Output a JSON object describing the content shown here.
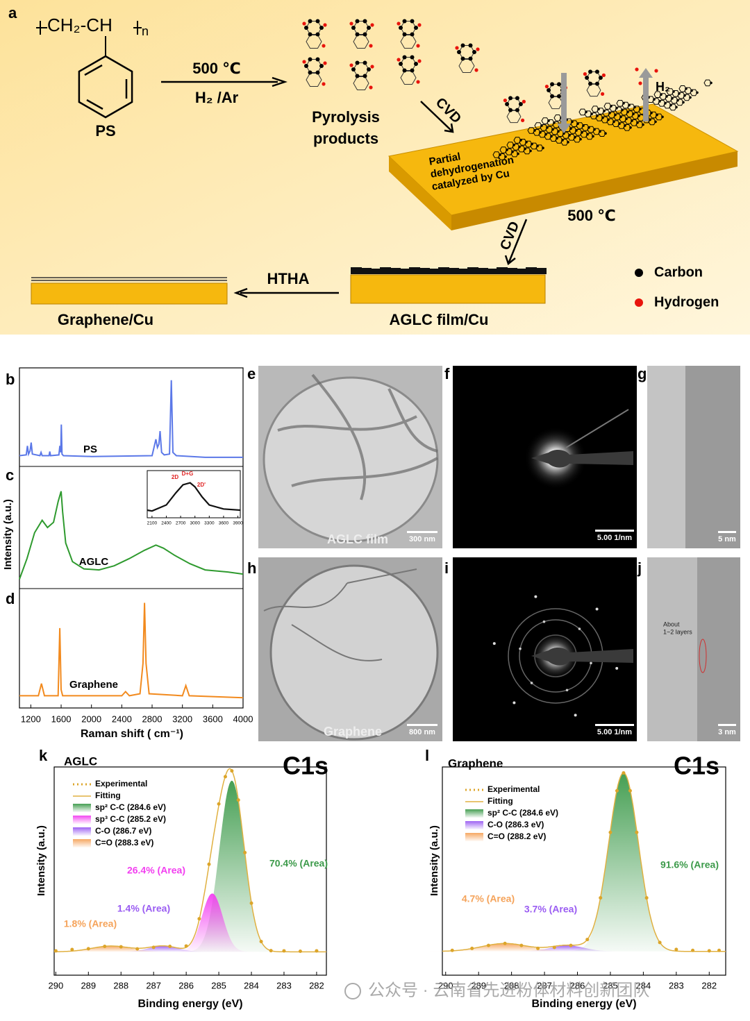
{
  "panel_labels": [
    "a",
    "b",
    "c",
    "d",
    "e",
    "f",
    "g",
    "h",
    "i",
    "j",
    "k",
    "l"
  ],
  "schematic": {
    "monomer": "CH₂-CH",
    "repeat": "n",
    "polymer": "PS",
    "temperature": "500 ℃",
    "gas": "H₂ /Ar",
    "pyrolysis": [
      "Pyrolysis",
      "products"
    ],
    "cvd": "CVD",
    "substrate_note": [
      "Partial",
      "dehydrogenation",
      "catalyzed by Cu"
    ],
    "substrate_temperature": "500 ℃",
    "hydrogen_gas": "H₂",
    "cvd_2": "CVD",
    "htha": "HTHA",
    "graphene_cu": "Graphene/Cu",
    "aglc_cu": "AGLC film/Cu",
    "legend": [
      {
        "name": "Carbon",
        "color": "#000000"
      },
      {
        "name": "Hydrogen",
        "color": "#e8140c"
      }
    ]
  },
  "raman": {
    "xlabel": "Raman shift ( cm⁻¹)",
    "ylabel": "Intensity (a.u.)",
    "xlim": [
      1050,
      4000
    ],
    "xticks": [
      1200,
      1600,
      2000,
      2400,
      2800,
      3200,
      3600,
      4000
    ],
    "ylim": [
      0,
      110
    ],
    "spectra": [
      {
        "name": "PS",
        "color": "#5b78e8",
        "x": [
          1050,
          1140,
          1155,
          1170,
          1190,
          1205,
          1220,
          1320,
          1335,
          1350,
          1440,
          1450,
          1460,
          1570,
          1583,
          1595,
          1602,
          1612,
          1630,
          2000,
          2800,
          2850,
          2870,
          2890,
          2905,
          2925,
          2960,
          3030,
          3054,
          3075,
          3120,
          3500,
          4000
        ],
        "values": [
          8,
          9,
          20,
          10,
          14,
          24,
          10,
          8,
          12,
          8,
          8,
          13,
          8,
          9,
          20,
          12,
          46,
          10,
          8,
          7,
          8,
          28,
          18,
          22,
          38,
          12,
          9,
          10,
          100,
          12,
          8,
          6,
          6
        ]
      },
      {
        "name": "AGLC",
        "color": "#2e9a2e",
        "x": [
          1050,
          1150,
          1250,
          1350,
          1420,
          1500,
          1560,
          1600,
          1620,
          1660,
          1750,
          1900,
          2100,
          2300,
          2500,
          2700,
          2850,
          2950,
          3100,
          3300,
          3500,
          3800,
          4000
        ],
        "values": [
          5,
          25,
          50,
          62,
          55,
          60,
          80,
          90,
          70,
          40,
          22,
          15,
          14,
          18,
          25,
          33,
          38,
          35,
          28,
          20,
          14,
          12,
          10
        ]
      },
      {
        "name": "Graphene",
        "color": "#f28a1e",
        "x": [
          1050,
          1300,
          1340,
          1380,
          1560,
          1582,
          1600,
          1620,
          2400,
          2450,
          2500,
          2640,
          2680,
          2700,
          2720,
          2760,
          3200,
          3245,
          3290,
          4000
        ],
        "values": [
          8,
          8,
          20,
          8,
          8,
          75,
          14,
          8,
          8,
          12,
          8,
          10,
          40,
          100,
          40,
          10,
          8,
          18,
          8,
          6
        ]
      }
    ],
    "inset": {
      "xlim": [
        2000,
        3950
      ],
      "xticks": [
        2100,
        2400,
        2700,
        3000,
        3300,
        3600,
        3900
      ],
      "ylim": [
        0,
        100
      ],
      "x": [
        2000,
        2100,
        2400,
        2600,
        2750,
        2900,
        3000,
        3150,
        3300,
        3600,
        3950
      ],
      "values": [
        12,
        10,
        25,
        55,
        75,
        80,
        70,
        45,
        25,
        15,
        12
      ],
      "peak_labels": [
        "2D",
        "D+G",
        "2D'"
      ]
    }
  },
  "tem": {
    "e": {
      "caption": "AGLC film",
      "scale": "300 nm"
    },
    "f": {
      "scale": "5.00 1/nm"
    },
    "g": {
      "scale": "5 nm"
    },
    "h": {
      "caption": "Graphene",
      "scale": "800 nm"
    },
    "i": {
      "scale": "5.00 1/nm"
    },
    "j": {
      "note": [
        "About",
        "1~2 layers"
      ],
      "scale": "3 nm"
    }
  },
  "xps": [
    {
      "sample": "AGLC",
      "title": "C1s",
      "xlabel": "Binding energy (eV)",
      "ylabel": "Intensity (a.u.)",
      "xlim": [
        290.05,
        281.7
      ],
      "xticks": [
        290,
        289,
        288,
        287,
        286,
        285,
        284,
        283,
        282
      ],
      "ylim": [
        -12,
        95
      ],
      "experimental": {
        "name": "Experimental",
        "color": "#dca52a",
        "x": [
          290,
          289.5,
          289,
          288.5,
          288,
          287.5,
          287,
          286.5,
          286,
          285.6,
          285.3,
          285,
          284.8,
          284.6,
          284.4,
          284.2,
          284,
          283.7,
          283.4,
          283,
          282.5,
          282
        ],
        "values": [
          0.5,
          1.2,
          1.6,
          2.8,
          2.6,
          1.5,
          2.3,
          2.8,
          3,
          17,
          45,
          76,
          90,
          93,
          78,
          51,
          25,
          5.3,
          0.6,
          0.5,
          0.3,
          0.5
        ]
      },
      "fitting": {
        "name": "Fitting",
        "color": "#e0b040"
      },
      "components": [
        {
          "name": "sp² C-C (284.6 eV)",
          "color": "#3c9a4a",
          "center": 284.6,
          "height": 88,
          "width": 0.38,
          "annotation": "70.4% (Area)"
        },
        {
          "name": "sp³ C-C (285.2 eV)",
          "color": "#f23ff0",
          "center": 285.2,
          "height": 30,
          "width": 0.32,
          "annotation": "26.4% (Area)"
        },
        {
          "name": "C-O (286.7 eV)",
          "color": "#9a5cf2",
          "center": 286.7,
          "height": 3,
          "width": 0.45,
          "annotation": "1.4% (Area)"
        },
        {
          "name": "C=O (288.3 eV)",
          "color": "#f5a35a",
          "center": 288.3,
          "height": 3,
          "width": 0.6,
          "annotation": "1.8% (Area)"
        }
      ]
    },
    {
      "sample": "Graphene",
      "title": "C1s",
      "xlabel": "Binding energy (eV)",
      "ylabel": "Intensity (a.u.)",
      "xlim": [
        290.1,
        281.5
      ],
      "xticks": [
        290,
        289,
        288,
        287,
        286,
        285,
        284,
        283,
        282
      ],
      "ylim": [
        -12,
        93
      ],
      "experimental": {
        "name": "Experimental",
        "color": "#dca52a",
        "x": [
          289.8,
          289.2,
          288.7,
          288.2,
          287.7,
          287.2,
          286.7,
          286.2,
          285.7,
          285.3,
          285,
          284.8,
          284.6,
          284.4,
          284.2,
          283.9,
          283.5,
          283,
          282.5,
          282,
          281.7
        ],
        "values": [
          0.5,
          1.5,
          3,
          4,
          3,
          1.5,
          2,
          3,
          6,
          27,
          60,
          81,
          90,
          81,
          60,
          27,
          4.5,
          1,
          0.5,
          0.3,
          0.5
        ]
      },
      "fitting": {
        "name": "Fitting",
        "color": "#e0b040"
      },
      "components": [
        {
          "name": "sp² C-C (284.6 eV)",
          "color": "#3c9a4a",
          "center": 284.6,
          "height": 90,
          "width": 0.45,
          "annotation": "91.6% (Area)"
        },
        {
          "name": "C-O (286.3 eV)",
          "color": "#9a5cf2",
          "center": 286.3,
          "height": 3,
          "width": 0.5,
          "annotation": "3.7% (Area)"
        },
        {
          "name": "C=O (288.2 eV)",
          "color": "#f5a35a",
          "center": 288.2,
          "height": 4,
          "width": 0.7,
          "annotation": "4.7% (Area)"
        }
      ]
    }
  ],
  "watermark": "公众号 · 云南省先进粉体材料创新团队"
}
